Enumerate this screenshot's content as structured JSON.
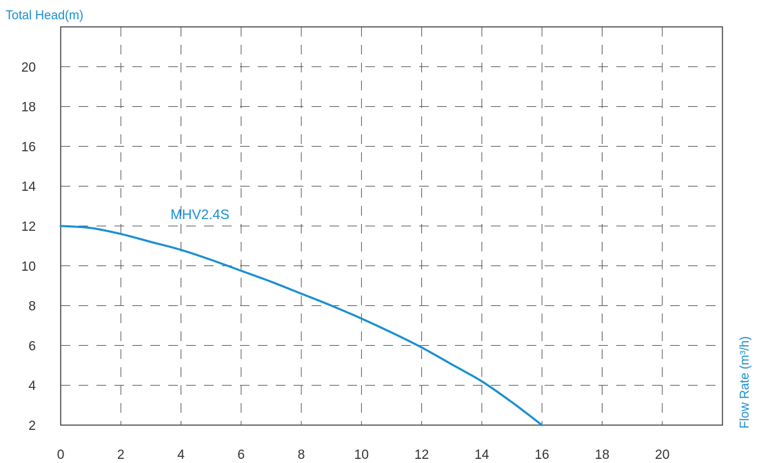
{
  "chart_data": {
    "type": "line",
    "ylabel": "Total Head(m)",
    "xlabel": "Flow Rate (m³/h)",
    "x_ticks": [
      "0",
      "2",
      "4",
      "6",
      "8",
      "10",
      "12",
      "14",
      "16",
      "18",
      "20"
    ],
    "y_ticks": [
      "2",
      "4",
      "6",
      "8",
      "10",
      "12",
      "14",
      "16",
      "18",
      "20"
    ],
    "xlim": [
      0,
      22
    ],
    "ylim": [
      2,
      22
    ],
    "grid": true,
    "grid_style": "dashed",
    "series": [
      {
        "name": "MHV2.4S",
        "color": "#1a8fd0",
        "x": [
          0,
          1,
          2,
          3,
          4,
          5,
          6,
          7,
          8,
          9,
          10,
          11,
          12,
          13,
          14,
          15,
          16
        ],
        "y": [
          12.0,
          11.9,
          11.6,
          11.2,
          10.8,
          10.3,
          9.75,
          9.2,
          8.6,
          8.0,
          7.35,
          6.65,
          5.9,
          5.05,
          4.2,
          3.15,
          2.0
        ]
      }
    ],
    "colors": {
      "axis_title": "#1a8fd0",
      "series": "#1a8fd0",
      "grid": "#555555",
      "frame": "#444444"
    }
  }
}
